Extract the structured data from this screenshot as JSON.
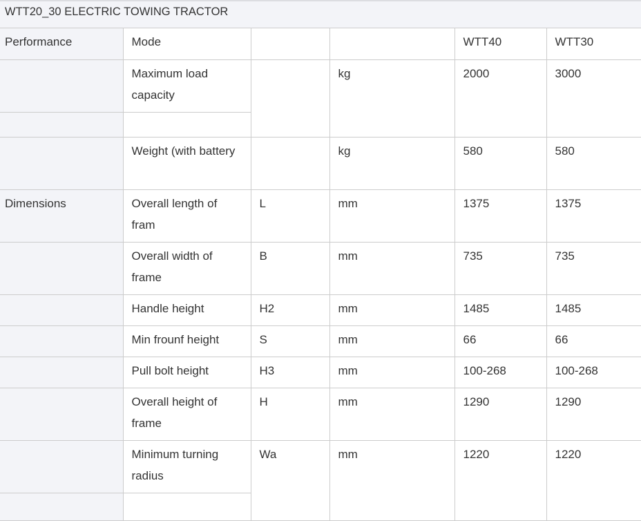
{
  "title": "WTT20_30 ELECTRIC TOWING TRACTOR",
  "header": [
    "Performance",
    "Mode",
    "",
    "",
    "WTT40",
    "WTT30"
  ],
  "rows": [
    {
      "section": "",
      "item": "Maximum load capacity",
      "symbol": "",
      "unit": "kg",
      "wtt40": "2000",
      "wtt30": "3000"
    },
    {
      "section": "",
      "item": ""
    },
    {
      "section": "",
      "item": "Weight (with battery",
      "symbol": "",
      "unit": "kg",
      "wtt40": "580",
      "wtt30": "580"
    },
    {
      "section": "Dimensions",
      "item": "Overall length of fram",
      "symbol": "L",
      "unit": "mm",
      "wtt40": "1375",
      "wtt30": "1375"
    },
    {
      "section": "",
      "item": "Overall width of frame",
      "symbol": "B",
      "unit": "mm",
      "wtt40": "735",
      "wtt30": "735"
    },
    {
      "section": "",
      "item": "Handle height",
      "symbol": "H2",
      "unit": "mm",
      "wtt40": "1485",
      "wtt30": "1485"
    },
    {
      "section": "",
      "item": "Min frounf height",
      "symbol": "S",
      "unit": "mm",
      "wtt40": "66",
      "wtt30": "66"
    },
    {
      "section": "",
      "item": "Pull bolt height",
      "symbol": "H3",
      "unit": "mm",
      "wtt40": "100-268",
      "wtt30": "100-268"
    },
    {
      "section": "",
      "item": "Overall height of frame",
      "symbol": "H",
      "unit": "mm",
      "wtt40": "1290",
      "wtt30": "1290"
    },
    {
      "section": "",
      "item": "Minimum turning radius",
      "symbol": "Wa",
      "unit": "mm",
      "wtt40": "1220",
      "wtt30": "1220"
    },
    {
      "section": "",
      "item": ""
    }
  ]
}
